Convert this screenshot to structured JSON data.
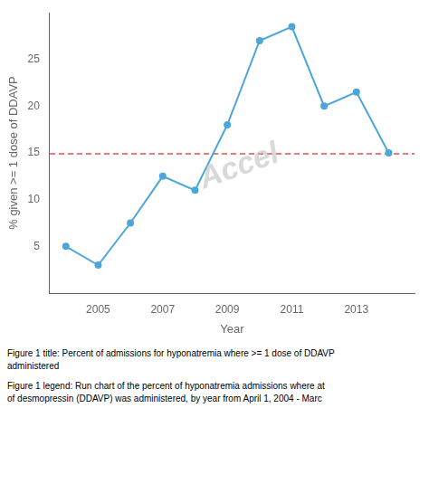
{
  "chart_data": {
    "type": "line",
    "x": [
      2004,
      2005,
      2006,
      2007,
      2008,
      2009,
      2010,
      2011,
      2012,
      2013,
      2014
    ],
    "values": [
      5.0,
      3.0,
      7.5,
      12.5,
      11.0,
      18.0,
      27.0,
      28.5,
      20.0,
      21.5,
      15.0
    ],
    "color": "#4DA6D8",
    "marker": "circle",
    "xlabel": "Year",
    "ylabel": "% given >= 1 dose of DDAVP",
    "xlim": [
      2003.5,
      2014.8
    ],
    "xticks": [
      2005,
      2007,
      2009,
      2011,
      2013
    ],
    "ylim": [
      0,
      30
    ],
    "yticks": [
      5,
      10,
      15,
      20,
      25
    ],
    "grid": false,
    "hline": {
      "y": 14.9,
      "color": "#E05050",
      "line_style": "dashed"
    },
    "annotations": [
      {
        "text": "Accel",
        "color": "#c0c0c0"
      }
    ],
    "caption": [
      "Figure 1 title: Percent of admissions for hyponatremia where >= 1 dose of DDAVP",
      "administered",
      "Figure 1 legend: Run chart of the percent of hyponatremia admissions where at",
      "of desmopressin (DDAVP) was administered, by year from April 1, 2004 - Marc"
    ]
  }
}
